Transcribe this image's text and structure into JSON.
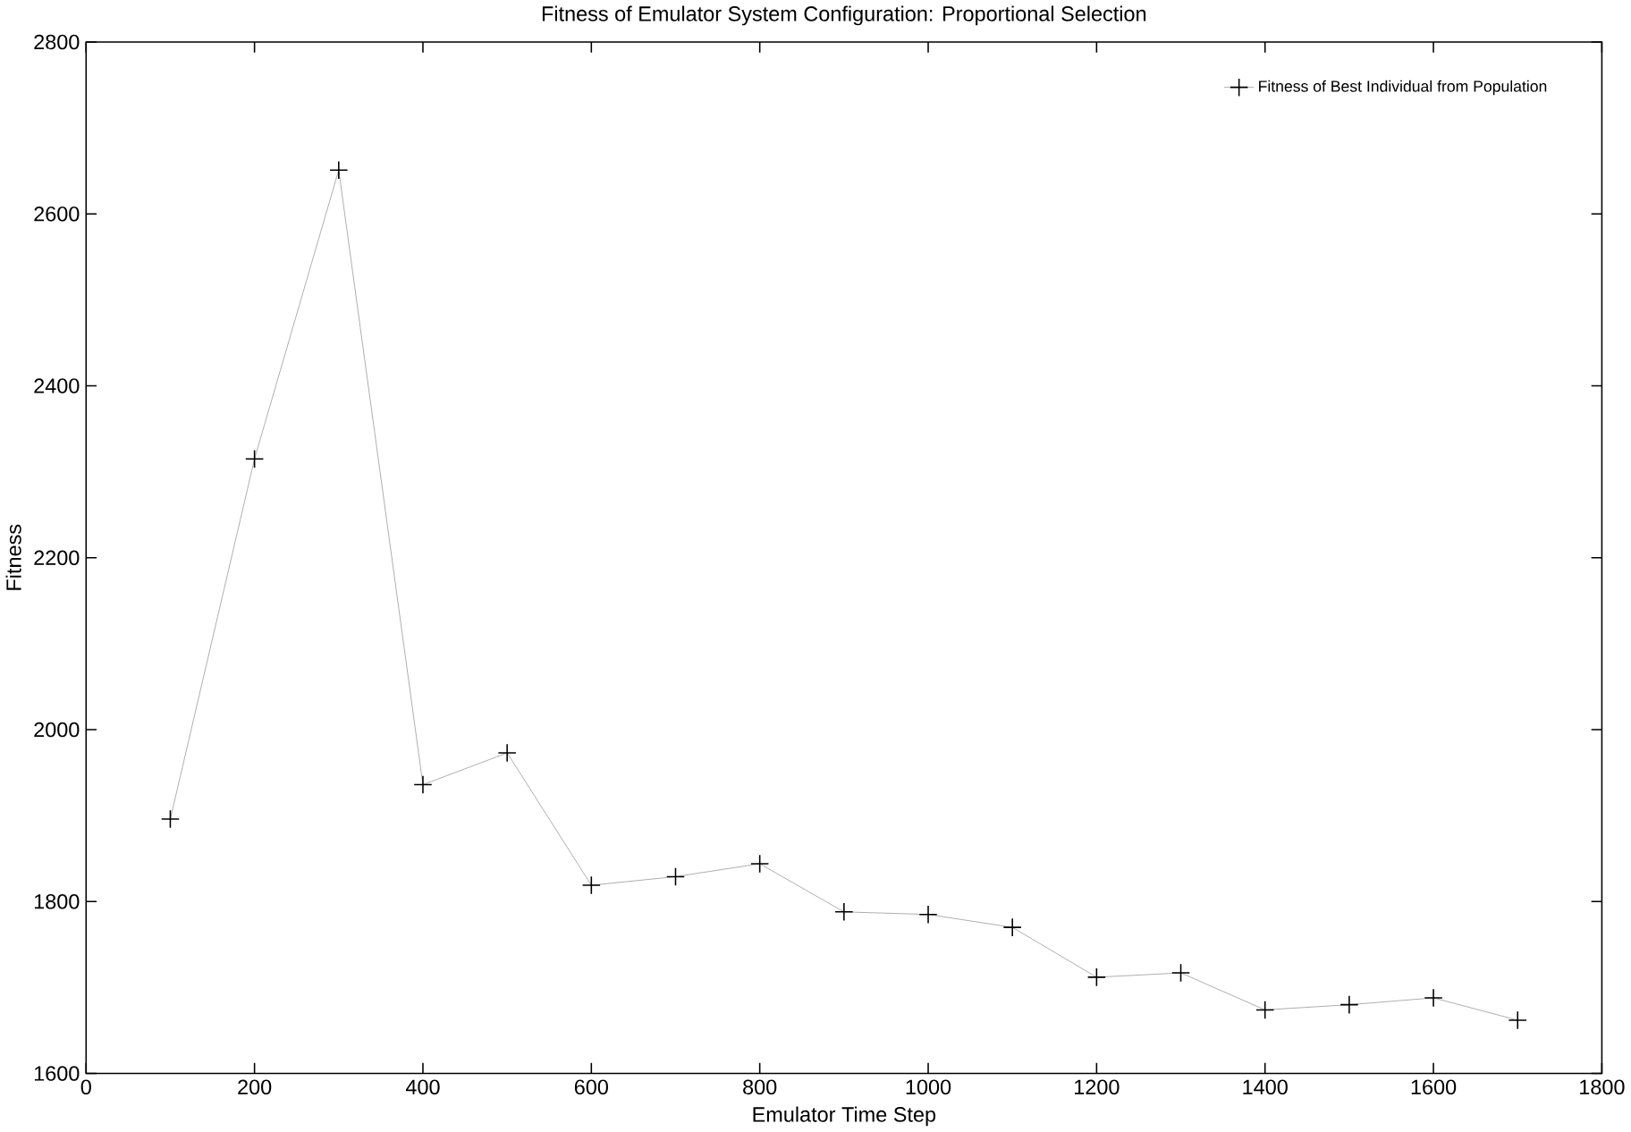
{
  "chart_data": {
    "type": "line",
    "title": "Fitness of Emulator System Configuration: Proportional Selection",
    "xlabel": "Emulator Time Step",
    "ylabel": "Fitness",
    "x": [
      100,
      200,
      300,
      400,
      500,
      600,
      700,
      800,
      900,
      1000,
      1100,
      1200,
      1300,
      1400,
      1500,
      1600,
      1700
    ],
    "series": [
      {
        "name": "Fitness of Best Individual from Population",
        "color": "#999999",
        "values": [
          1896,
          2315,
          2651,
          1936,
          1973,
          1819,
          1829,
          1844,
          1788,
          1785,
          1770,
          1712,
          1717,
          1674,
          1680,
          1688,
          1662
        ]
      }
    ],
    "xlim": [
      0,
      1800
    ],
    "xticks": [
      0,
      200,
      400,
      600,
      800,
      1000,
      1200,
      1400,
      1600,
      1800
    ],
    "ylim": [
      1600,
      2800
    ],
    "yticks": [
      1600,
      1800,
      2000,
      2200,
      2400,
      2600,
      2800
    ],
    "marker": "cross",
    "line_style": "solid",
    "legend": "top right",
    "grid": false
  }
}
